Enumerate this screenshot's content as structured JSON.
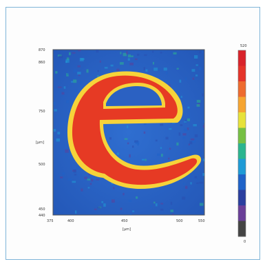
{
  "chart_data": {
    "type": "heatmap",
    "title": "",
    "xlabel": "[µm]",
    "ylabel": "[µm]",
    "x_ticks": [
      "375",
      "400",
      "450",
      "500",
      "550"
    ],
    "y_ticks": [
      "870",
      "860",
      "750",
      "500",
      "450",
      "440"
    ],
    "colorbar_ticks": [
      "520",
      "0"
    ],
    "grid": false,
    "legend": "right colorbar",
    "content": "Intensity map showing the letter e",
    "colors": {
      "background": "#2a66c4",
      "signal": "#e63a24",
      "edge": "#f6d33a",
      "frame": "#7eb4d8"
    },
    "colorbar_colors": [
      "#444444",
      "#6a3f98",
      "#2b3f9f",
      "#1f63c8",
      "#1f9bd6",
      "#2bb58f",
      "#76c043",
      "#e7e23a",
      "#f6a531",
      "#ee6b2f",
      "#e5342a",
      "#d9232b"
    ]
  }
}
